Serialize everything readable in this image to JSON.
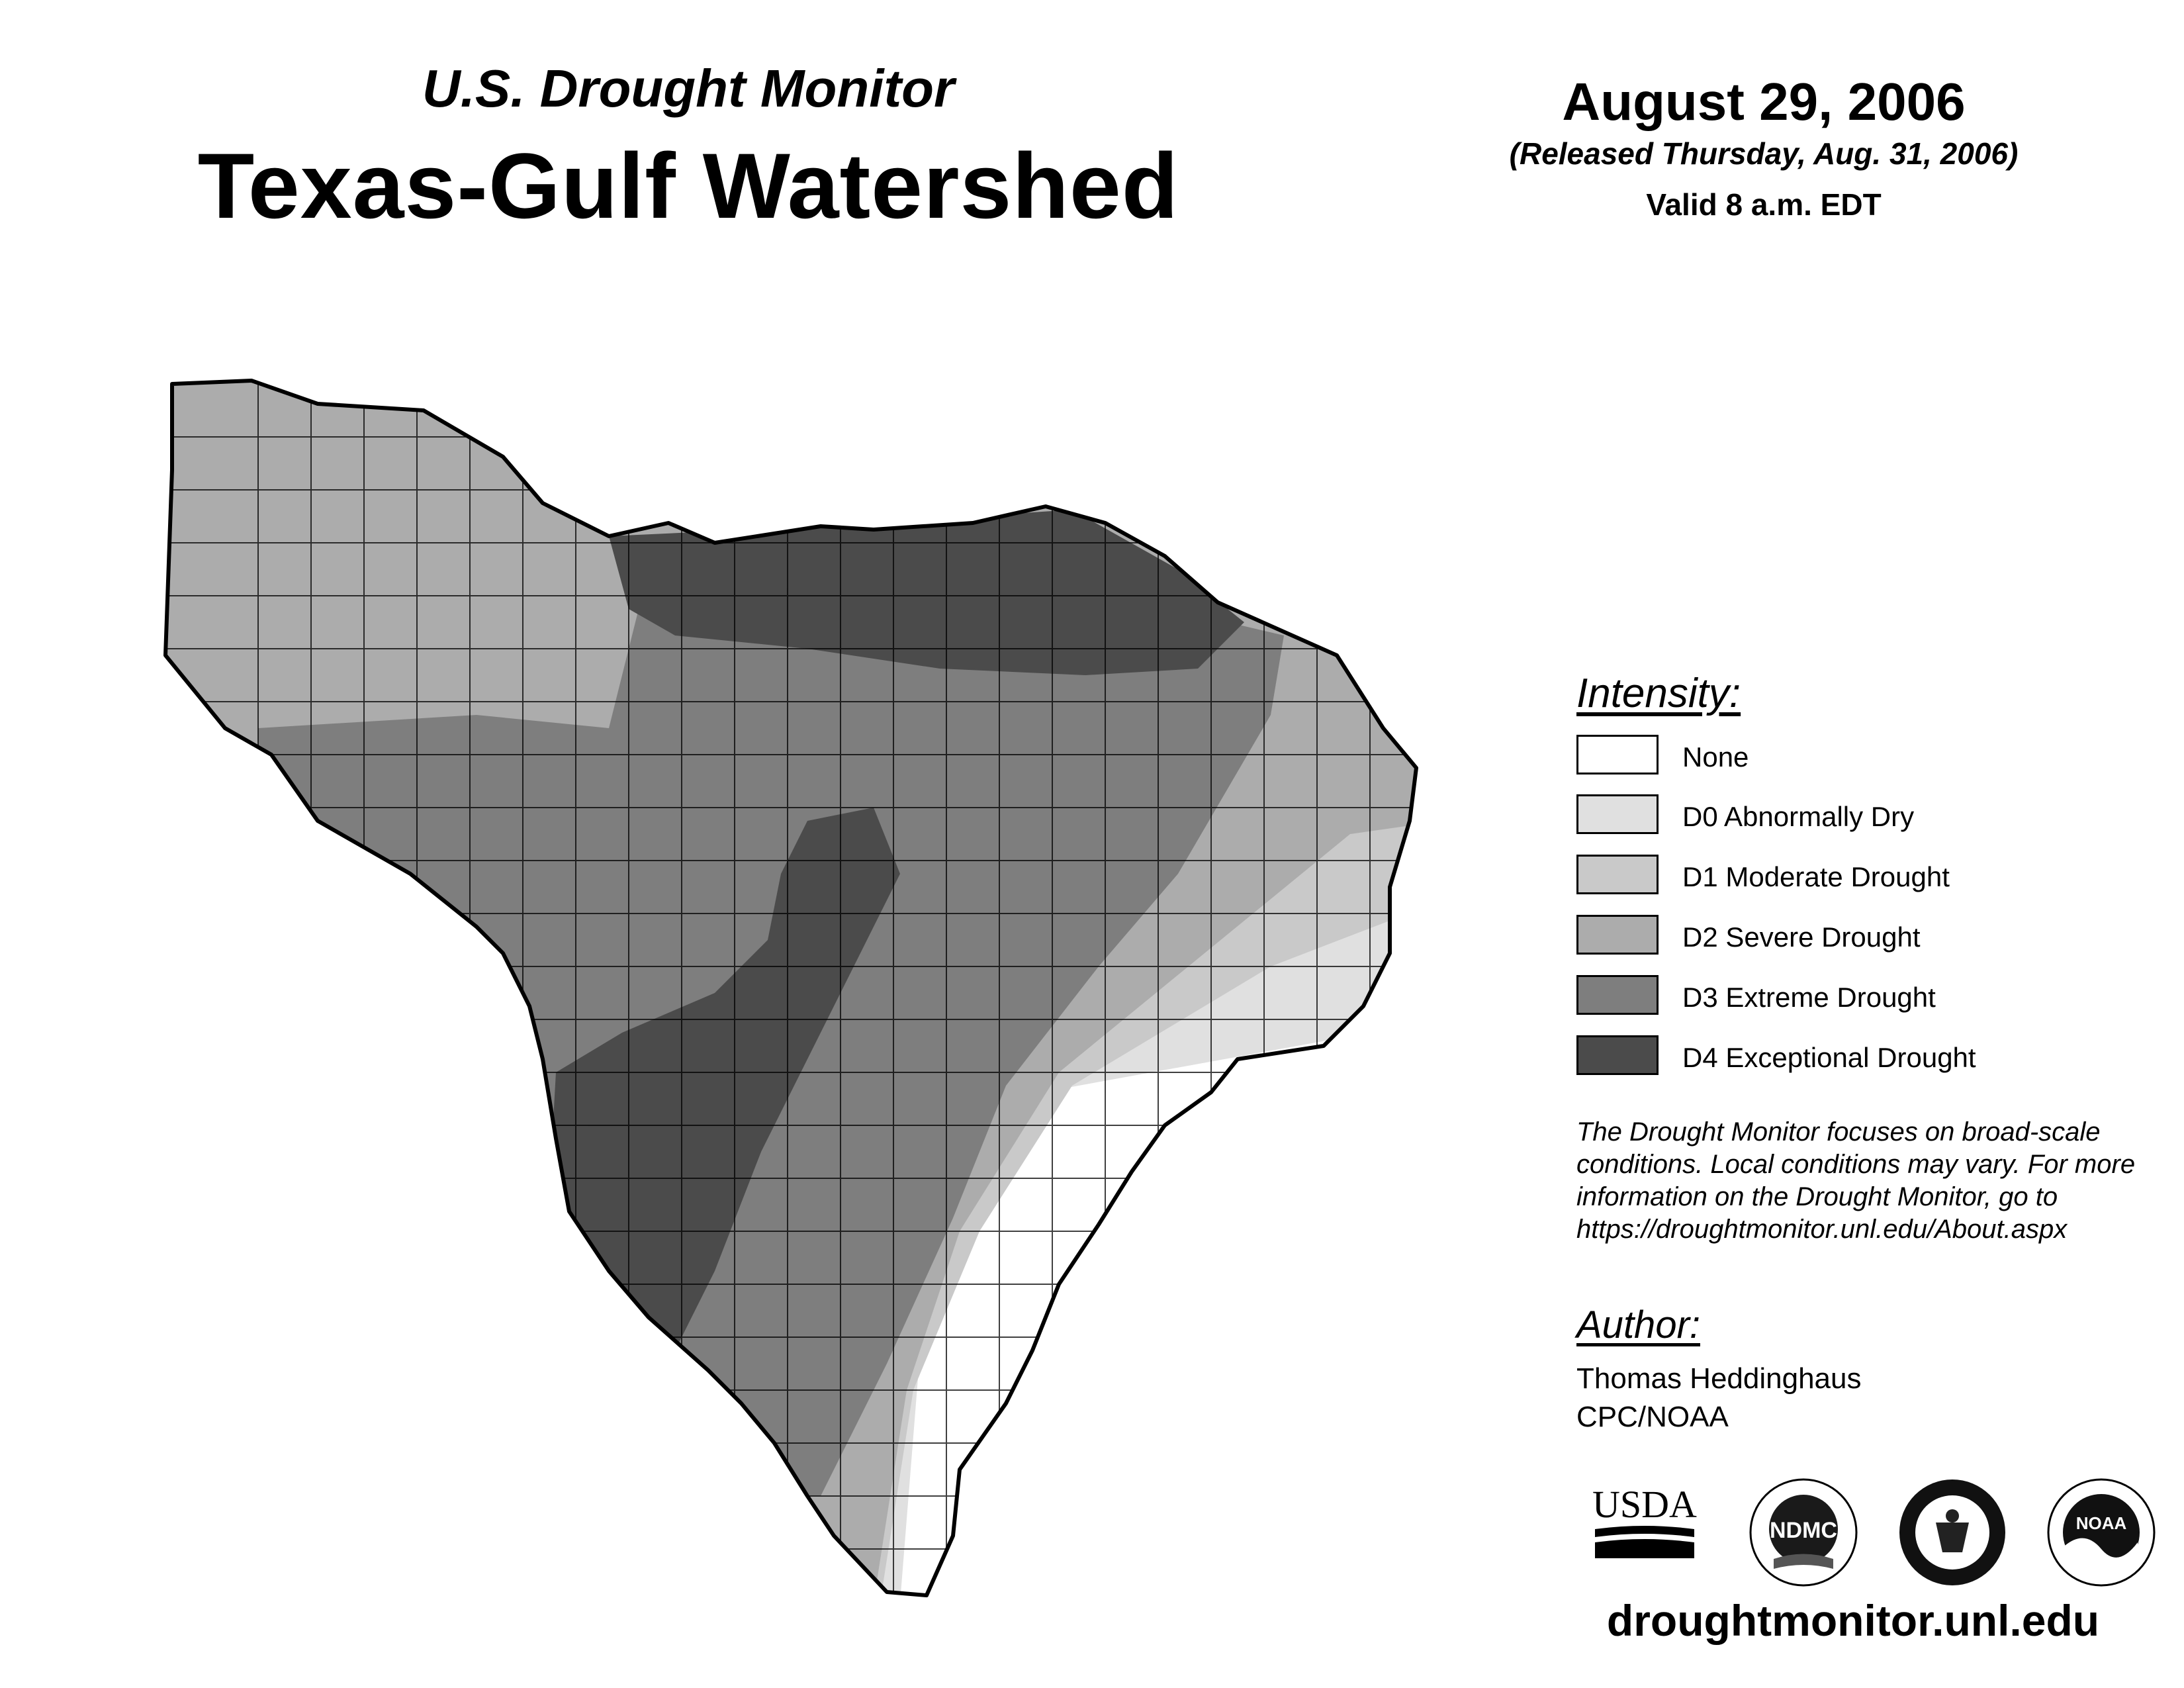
{
  "header": {
    "subtitle": "U.S. Drought Monitor",
    "title": "Texas-Gulf Watershed",
    "date": "August 29, 2006",
    "released": "(Released Thursday, Aug. 31, 2006)",
    "valid": "Valid 8 a.m. EDT"
  },
  "legend": {
    "title": "Intensity:",
    "items": [
      {
        "label": "None",
        "color": "#ffffff"
      },
      {
        "label": "D0 Abnormally Dry",
        "color": "#e0e0e0"
      },
      {
        "label": "D1 Moderate Drought",
        "color": "#c9c9c9"
      },
      {
        "label": "D2 Severe Drought",
        "color": "#acacac"
      },
      {
        "label": "D3 Extreme Drought",
        "color": "#7e7e7e"
      },
      {
        "label": "D4 Exceptional Drought",
        "color": "#4b4b4b"
      }
    ]
  },
  "note": {
    "lines": [
      "The Drought Monitor focuses on broad-scale",
      "conditions. Local conditions may vary. For more",
      "information on the Drought Monitor, go to",
      "https://droughtmonitor.unl.edu/About.aspx"
    ]
  },
  "author": {
    "title": "Author:",
    "name": "Thomas Heddinghaus",
    "org": "CPC/NOAA"
  },
  "logos": {
    "usda": "USDA",
    "ndmc": "NDMC",
    "noaa": "NOAA"
  },
  "footer": {
    "site": "droughtmonitor.unl.edu"
  },
  "map": {
    "region_name": "Texas-Gulf Watershed"
  }
}
